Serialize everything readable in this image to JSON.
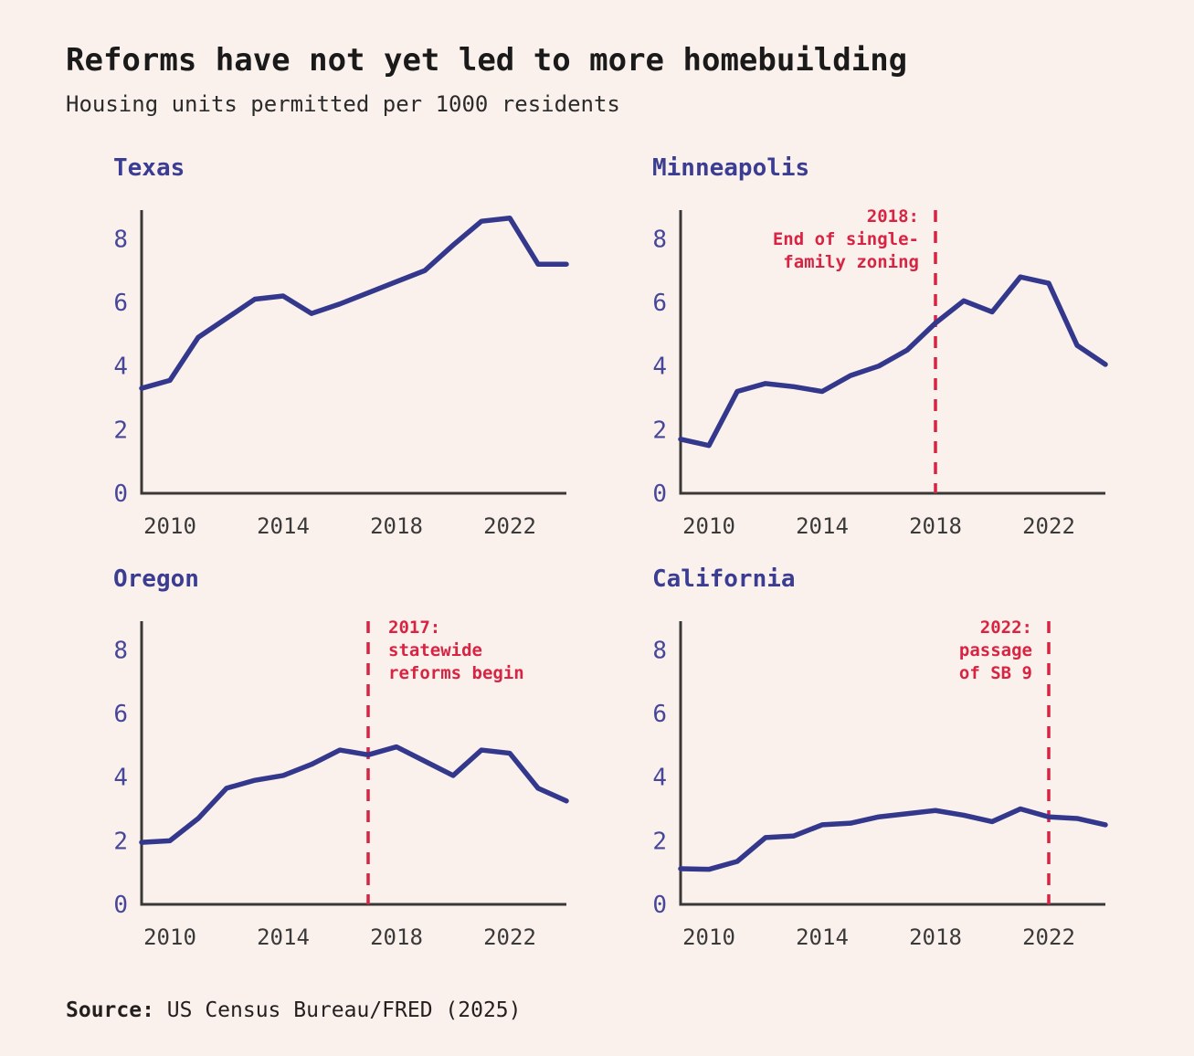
{
  "header": {
    "title": "Reforms have not yet led to more homebuilding",
    "subtitle": "Housing units permitted per 1000 residents"
  },
  "footer": {
    "source_label": "Source:",
    "source_text": " US Census Bureau/FRED (2025)"
  },
  "colors": {
    "background": "#fbf1ec",
    "line": "#34388c",
    "axis": "#3a3737",
    "x_tick_label": "#3a3a3a",
    "y_tick_label": "#464799",
    "chart_title": "#3b3d92",
    "annotation": "#d82443",
    "title_text": "#1a1a1a",
    "subtitle_text": "#2b2b2b",
    "source_text": "#241f1f"
  },
  "chart_data": {
    "type": "line",
    "title": "Reforms have not yet led to more homebuilding",
    "subtitle": "Housing units permitted per 1000 residents",
    "ylabel": "Housing units permitted per 1000 residents",
    "x": [
      2009,
      2010,
      2011,
      2012,
      2013,
      2014,
      2015,
      2016,
      2017,
      2018,
      2019,
      2020,
      2021,
      2022,
      2023,
      2024
    ],
    "x_ticks": [
      2010,
      2014,
      2018,
      2022
    ],
    "y_ticks": [
      0,
      2,
      4,
      6,
      8
    ],
    "xlim": [
      2009,
      2024
    ],
    "ylim": [
      0,
      8.9
    ],
    "grid": false,
    "legend": "none",
    "series": [
      {
        "name": "Texas",
        "values": [
          3.3,
          3.55,
          4.9,
          5.5,
          6.1,
          6.2,
          5.65,
          5.95,
          6.3,
          6.65,
          7.0,
          7.8,
          8.55,
          8.65,
          7.2,
          7.2
        ],
        "annotation": null
      },
      {
        "name": "Minneapolis",
        "values": [
          1.7,
          1.5,
          3.2,
          3.45,
          3.35,
          3.2,
          3.7,
          4.0,
          4.5,
          5.35,
          6.05,
          5.7,
          6.8,
          6.6,
          4.65,
          4.05
        ],
        "annotation": {
          "year": 2018,
          "lines": [
            "2018:",
            "End of single-",
            "family zoning"
          ],
          "side": "left"
        }
      },
      {
        "name": "Oregon",
        "values": [
          1.95,
          2.0,
          2.7,
          3.65,
          3.9,
          4.05,
          4.4,
          4.85,
          4.7,
          4.95,
          4.5,
          4.05,
          4.85,
          4.75,
          3.65,
          3.25
        ],
        "annotation": {
          "year": 2017,
          "lines": [
            "2017:",
            "statewide",
            "reforms begin"
          ],
          "side": "right"
        }
      },
      {
        "name": "California",
        "values": [
          1.12,
          1.1,
          1.35,
          2.1,
          2.15,
          2.5,
          2.55,
          2.75,
          2.85,
          2.95,
          2.8,
          2.6,
          3.0,
          2.75,
          2.7,
          2.5
        ],
        "annotation": {
          "year": 2022,
          "lines": [
            "2022:",
            "passage",
            "of SB 9"
          ],
          "side": "left"
        }
      }
    ]
  }
}
